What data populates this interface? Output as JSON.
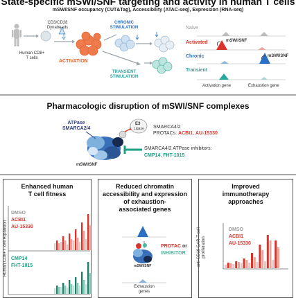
{
  "header": {
    "title": "State-specific mSWI/SNF targeting and activity in human T cells",
    "subtitle": "mSWI/SNF occupancy (CUT&Tag), Accessibility (ATAC-seq), Expression (RNA-seq)"
  },
  "top_panel": {
    "cd3_label_1": "CD3/CD28",
    "cd3_label_2": "Dynabeads",
    "human_cd8_1": "Human CD8+",
    "human_cd8_2": "T cells",
    "activation": "ACTIVATION",
    "chronic_1": "CHRONIC",
    "chronic_2": "STIMULATION",
    "transient_1": "TRANSIENT",
    "transient_2": "STIMULATION",
    "naive": "Naive",
    "activated": "Activated",
    "chronic": "Chronic",
    "transient": "Transient",
    "mswi_snf_a": "mSWI/SNF",
    "mswi_snf_b": "mSWI/SNF",
    "activation_gene": "Activation gene",
    "exhaustion_gene": "Exhaustion gene"
  },
  "middle_panel": {
    "title": "Pharmacologic disruption of mSWI/SNF complexes",
    "atpase_1": "ATPase",
    "atpase_2": "SMARCA2/4",
    "e3": "E3",
    "ligase": "Ligase",
    "protacs_line1": "SMARCA4/2",
    "protacs_prefix": "PROTACs: ",
    "acbi1": "ACBI1",
    "comma": ", ",
    "au15330": "AU-15330",
    "inhib_line1": "SMARCA4/2 ATPase inhibitors:",
    "cmp14": "CMP14",
    "fht1015": "FHT-1015",
    "mswi_snf": "mSWI/SNF"
  },
  "boxes": {
    "left": {
      "title_1": "Enhanced human",
      "title_2": "T cell fitness",
      "ylabel": "Human CD8+ T cell expansion",
      "legend_top": [
        "DMSO",
        "ACBI1",
        "AU-15330"
      ],
      "legend_bottom": [
        "CMP14",
        "FHT-1015"
      ]
    },
    "middle": {
      "title_1": "Reduced chromatin",
      "title_2": "accessibility and expression",
      "title_3": "of exhaustion-",
      "title_4": "associated genes",
      "protac": "PROTAC",
      "or": " or",
      "inhibitor": "INHIBITOR",
      "mswi_snf": "mSWI/SNF",
      "exhaustion_1": "Exhaustion",
      "exhaustion_2": "genes"
    },
    "right": {
      "title_1": "Improved",
      "title_2": "immunotherapy",
      "title_3": "approaches",
      "ylabel_1": "anti-CD19 CAR-T cell",
      "ylabel_2": "proliferation",
      "legend": [
        "DMSO",
        "ACBI1",
        "AU-15330"
      ]
    }
  },
  "colors": {
    "teal": "#27a7a0",
    "blue": "#2a6fc4",
    "red": "#d8342b",
    "orange": "#e9642c",
    "green": "#1aa085",
    "navy": "#2b3e8c"
  }
}
